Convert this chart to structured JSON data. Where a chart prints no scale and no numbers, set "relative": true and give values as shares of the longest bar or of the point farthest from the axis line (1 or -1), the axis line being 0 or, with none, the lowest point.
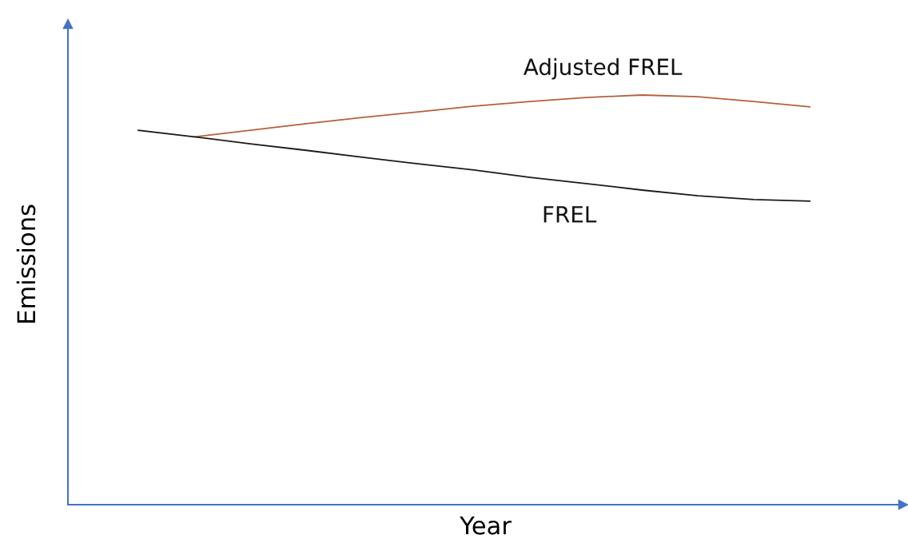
{
  "chart_data": {
    "type": "line",
    "relative": true,
    "xlabel": "Year",
    "ylabel": "Emissions",
    "categories": [
      null,
      null,
      null,
      null,
      null,
      null,
      null,
      null,
      null,
      null,
      null,
      null,
      null
    ],
    "series": [
      {
        "name": "Adjusted FREL",
        "color": "#b5603a",
        "values": [
          null,
          0.898,
          0.914,
          0.93,
          0.945,
          0.959,
          0.973,
          0.984,
          0.994,
          1.0,
          0.996,
          0.984,
          0.971
        ]
      },
      {
        "name": "FREL",
        "color": "#1a1a1a",
        "values": [
          0.914,
          0.898,
          0.881,
          0.865,
          0.848,
          0.832,
          0.817,
          0.799,
          0.784,
          0.768,
          0.754,
          0.745,
          0.741
        ]
      }
    ],
    "marker": "none",
    "line_style": "solid"
  }
}
